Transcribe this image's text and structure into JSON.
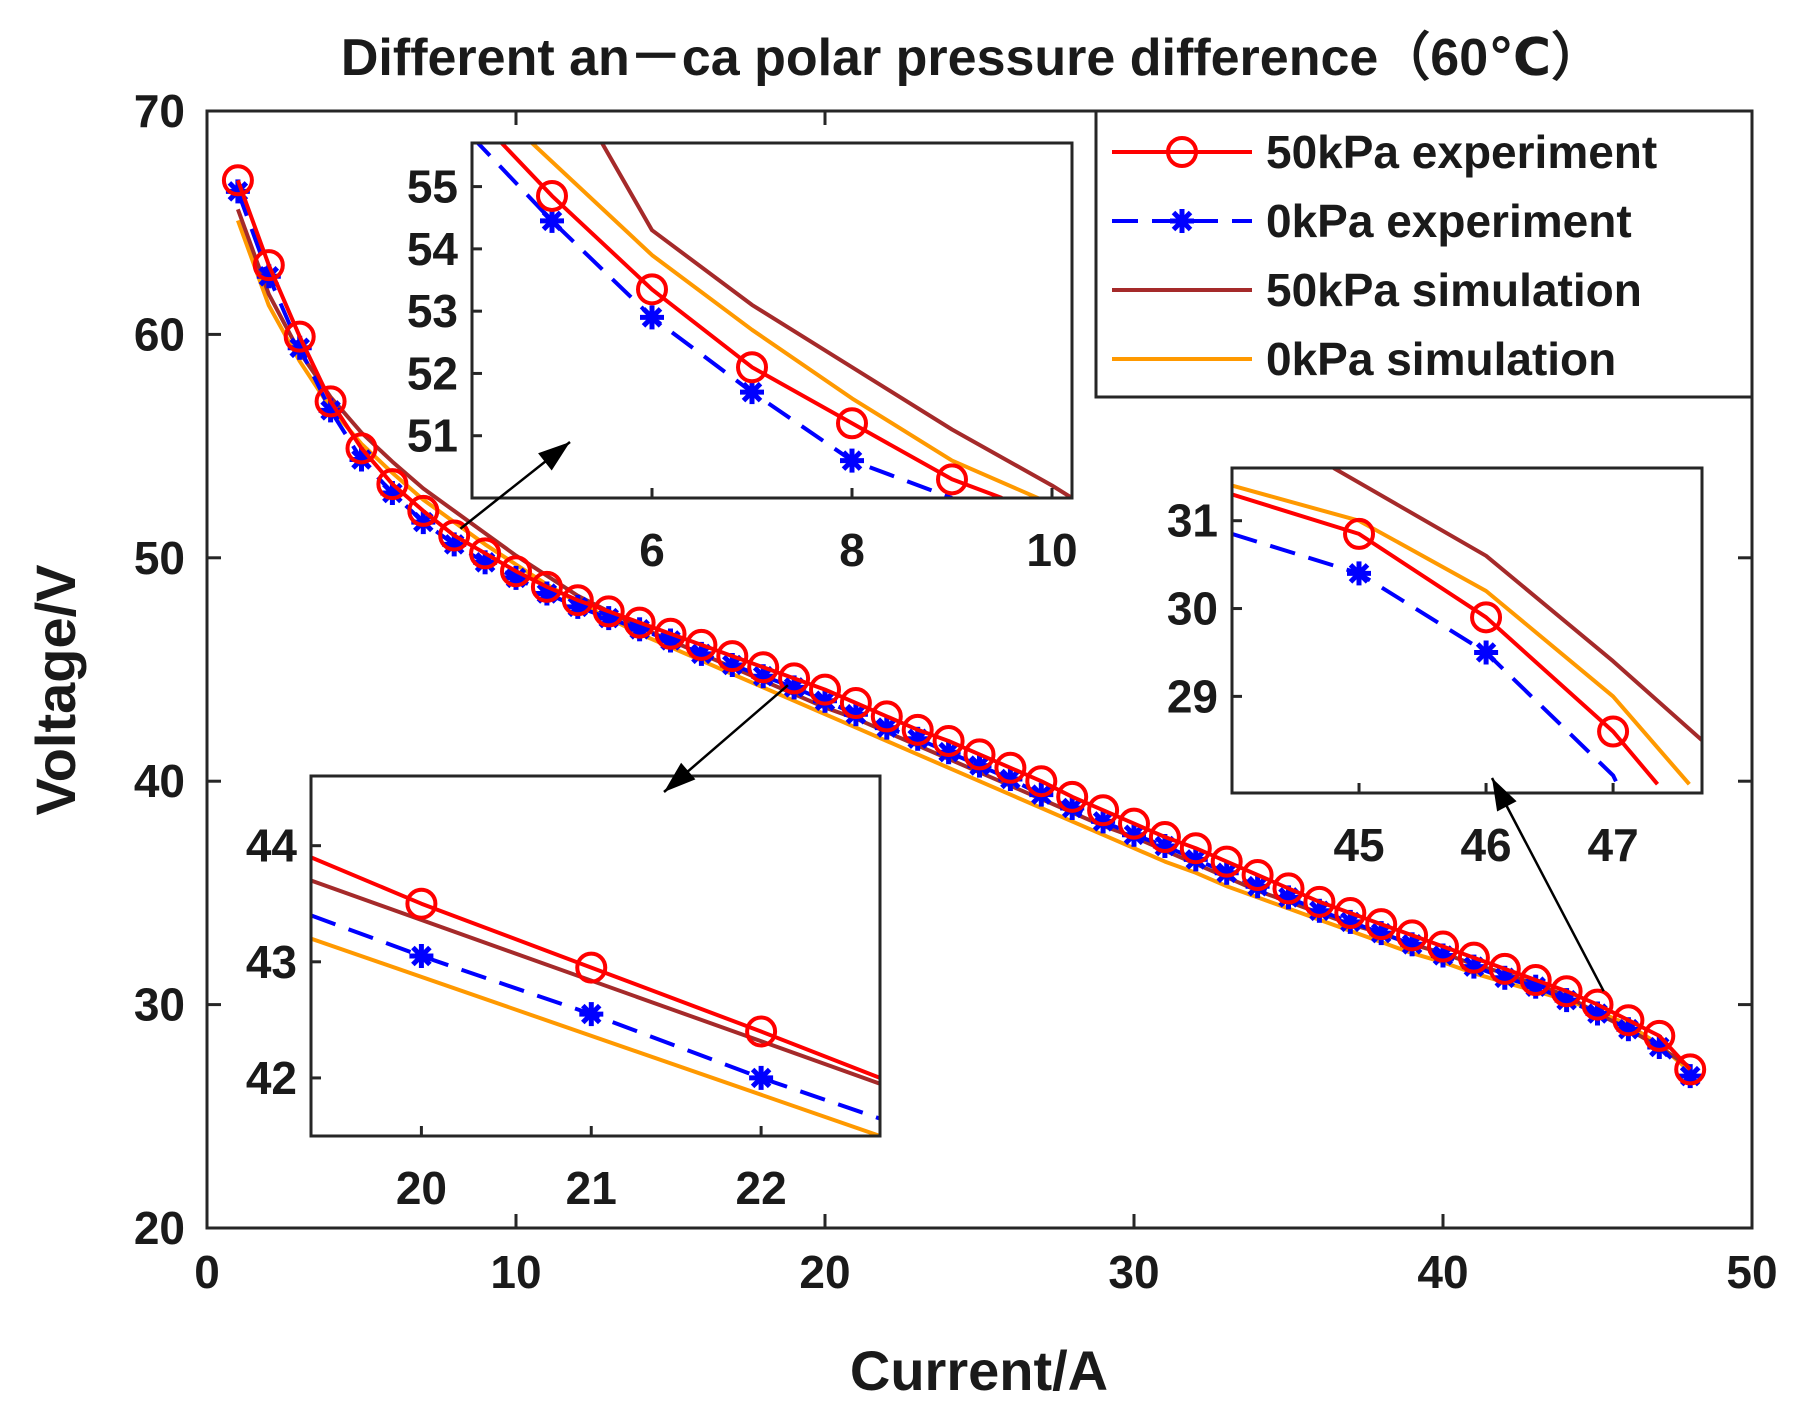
{
  "chart_data": {
    "type": "line",
    "title": "Different an－ca polar pressure difference（60℃）",
    "xlabel": "Current/A",
    "ylabel": "Voltage/V",
    "xlim": [
      0,
      50
    ],
    "ylim": [
      20,
      70
    ],
    "xticks": [
      0,
      10,
      20,
      30,
      40,
      50
    ],
    "yticks": [
      20,
      30,
      40,
      50,
      60,
      70
    ],
    "legend_position": "top-right",
    "colors": {
      "exp50": "#ff0000",
      "exp0": "#0000ff",
      "sim50": "#a52a2a",
      "sim0": "#ff9900"
    },
    "series": [
      {
        "name": "50kPa experiment",
        "key": "exp50",
        "style": "solid-circle",
        "x": [
          1,
          2,
          3,
          4,
          5,
          6,
          7,
          8,
          9,
          10,
          11,
          12,
          13,
          14,
          15,
          16,
          17,
          18,
          19,
          20,
          21,
          22,
          23,
          24,
          25,
          26,
          27,
          28,
          29,
          30,
          31,
          32,
          33,
          34,
          35,
          36,
          37,
          38,
          39,
          40,
          41,
          42,
          43,
          44,
          45,
          46,
          47,
          48
        ],
        "y": [
          66.9,
          63.1,
          59.9,
          57.0,
          54.9,
          53.3,
          52.1,
          51.0,
          50.2,
          49.4,
          48.7,
          48.1,
          47.6,
          47.1,
          46.6,
          46.1,
          45.6,
          45.1,
          44.6,
          44.1,
          43.5,
          42.9,
          42.3,
          41.8,
          41.2,
          40.6,
          40.0,
          39.3,
          38.7,
          38.1,
          37.5,
          37.0,
          36.4,
          35.8,
          35.2,
          34.6,
          34.1,
          33.6,
          33.1,
          32.6,
          32.1,
          31.6,
          31.1,
          30.6,
          30.0,
          29.3,
          28.6,
          27.1
        ]
      },
      {
        "name": "0kPa experiment",
        "key": "exp0",
        "style": "dashed-star",
        "x": [
          1,
          2,
          3,
          4,
          5,
          6,
          7,
          8,
          9,
          10,
          11,
          12,
          13,
          14,
          15,
          16,
          17,
          18,
          19,
          20,
          21,
          22,
          23,
          24,
          25,
          26,
          27,
          28,
          29,
          30,
          31,
          32,
          33,
          34,
          35,
          36,
          37,
          38,
          39,
          40,
          41,
          42,
          43,
          44,
          45,
          46,
          47,
          48
        ],
        "y": [
          66.4,
          62.6,
          59.4,
          56.6,
          54.4,
          52.9,
          51.6,
          50.6,
          49.8,
          49.1,
          48.4,
          47.8,
          47.3,
          46.8,
          46.3,
          45.7,
          45.2,
          44.7,
          44.2,
          43.6,
          43.0,
          42.4,
          41.9,
          41.3,
          40.7,
          40.1,
          39.4,
          38.8,
          38.2,
          37.6,
          37.1,
          36.5,
          35.9,
          35.3,
          34.8,
          34.2,
          33.7,
          33.2,
          32.7,
          32.2,
          31.7,
          31.2,
          30.8,
          30.2,
          29.6,
          28.9,
          28.1,
          26.8
        ]
      },
      {
        "name": "50kPa simulation",
        "key": "sim50",
        "style": "solid",
        "x": [
          1,
          2,
          3,
          4,
          5,
          6,
          7,
          8,
          9,
          10,
          11,
          12,
          13,
          14,
          15,
          16,
          17,
          18,
          19,
          20,
          21,
          22,
          23,
          24,
          25,
          26,
          27,
          28,
          29,
          30,
          31,
          32,
          33,
          34,
          35,
          36,
          37,
          38,
          39,
          40,
          41,
          42,
          43,
          44,
          45,
          46,
          47,
          48
        ],
        "y": [
          65.6,
          61.8,
          59.2,
          57.2,
          55.6,
          54.3,
          53.1,
          52.1,
          51.1,
          50.1,
          49.2,
          48.3,
          47.6,
          46.9,
          46.3,
          45.7,
          45.1,
          44.5,
          43.9,
          43.3,
          42.8,
          42.2,
          41.6,
          41.0,
          40.4,
          39.8,
          39.2,
          38.6,
          38.0,
          37.5,
          36.9,
          36.3,
          35.7,
          35.1,
          34.6,
          34.1,
          33.6,
          33.2,
          32.7,
          32.3,
          31.8,
          31.4,
          30.9,
          30.4,
          29.6,
          28.9,
          28.1,
          27.2
        ]
      },
      {
        "name": "0kPa simulation",
        "key": "sim0",
        "style": "solid",
        "x": [
          1,
          2,
          3,
          4,
          5,
          6,
          7,
          8,
          9,
          10,
          11,
          12,
          13,
          14,
          15,
          16,
          17,
          18,
          19,
          20,
          21,
          22,
          23,
          24,
          25,
          26,
          27,
          28,
          29,
          30,
          31,
          32,
          33,
          34,
          35,
          36,
          37,
          38,
          39,
          40,
          41,
          42,
          43,
          44,
          45,
          46,
          47,
          48
        ],
        "y": [
          65.1,
          61.3,
          58.8,
          56.7,
          55.1,
          53.8,
          52.6,
          51.6,
          50.6,
          49.7,
          48.8,
          48.0,
          47.3,
          46.6,
          46.0,
          45.4,
          44.8,
          44.2,
          43.6,
          43.0,
          42.4,
          41.8,
          41.2,
          40.6,
          40.0,
          39.4,
          38.8,
          38.2,
          37.6,
          37.0,
          36.4,
          35.9,
          35.3,
          34.8,
          34.3,
          33.8,
          33.3,
          32.8,
          32.3,
          31.9,
          31.4,
          31.0,
          30.6,
          30.2,
          29.7,
          29.1,
          28.2,
          27.0
        ]
      }
    ],
    "insets": [
      {
        "name": "inset-top",
        "xlim": [
          4.2,
          10.2
        ],
        "ylim": [
          50.0,
          55.7
        ],
        "xticks": [
          6,
          8,
          10
        ],
        "yticks": [
          51,
          52,
          53,
          54,
          55
        ],
        "series": {
          "exp50": {
            "x": [
              4.2,
              5,
              6,
              7,
              8,
              9,
              9.5
            ],
            "y": [
              56.2,
              54.85,
              53.35,
              52.1,
              51.2,
              50.3,
              50.0
            ]
          },
          "exp0": {
            "x": [
              4.2,
              5,
              6,
              7,
              8,
              9,
              9.0
            ],
            "y": [
              55.8,
              54.45,
              52.9,
              51.7,
              50.6,
              50.0,
              50.0
            ]
          },
          "sim50": {
            "x": [
              5.5,
              6,
              7,
              8,
              9,
              10,
              10.2
            ],
            "y": [
              55.7,
              54.3,
              53.1,
              52.1,
              51.1,
              50.2,
              50.0
            ]
          },
          "sim0": {
            "x": [
              4.8,
              6,
              7,
              8,
              9,
              10,
              10.2
            ],
            "y": [
              55.7,
              53.9,
              52.7,
              51.6,
              50.6,
              49.9,
              49.8
            ]
          }
        },
        "markers": {
          "exp50": [
            [
              5,
              54.85
            ],
            [
              6,
              53.35
            ],
            [
              7,
              52.1
            ],
            [
              8,
              51.2
            ],
            [
              9,
              50.3
            ]
          ],
          "exp0": [
            [
              5,
              54.45
            ],
            [
              6,
              52.9
            ],
            [
              7,
              51.7
            ],
            [
              8,
              50.6
            ]
          ]
        }
      },
      {
        "name": "inset-bottom",
        "xlim": [
          19.35,
          22.7
        ],
        "ylim": [
          41.5,
          44.6
        ],
        "xticks": [
          20,
          21,
          22
        ],
        "yticks": [
          42,
          43,
          44
        ],
        "series": {
          "exp50": {
            "x": [
              19.35,
              20,
              21,
              22,
              22.7
            ],
            "y": [
              43.9,
              43.5,
              42.95,
              42.4,
              42.0
            ]
          },
          "exp0": {
            "x": [
              19.35,
              20,
              21,
              22,
              22.7
            ],
            "y": [
              43.4,
              43.05,
              42.55,
              42.0,
              41.65
            ]
          },
          "sim50": {
            "x": [
              19.35,
              22.7
            ],
            "y": [
              43.7,
              41.95
            ]
          },
          "sim0": {
            "x": [
              19.35,
              22.7
            ],
            "y": [
              43.2,
              41.5
            ]
          }
        },
        "markers": {
          "exp50": [
            [
              20,
              43.5
            ],
            [
              21,
              42.95
            ],
            [
              22,
              42.4
            ]
          ],
          "exp0": [
            [
              20,
              43.05
            ],
            [
              21,
              42.55
            ],
            [
              22,
              42.0
            ]
          ]
        }
      },
      {
        "name": "inset-right",
        "xlim": [
          44.0,
          47.7
        ],
        "ylim": [
          27.9,
          31.6
        ],
        "xticks": [
          45,
          46,
          47
        ],
        "yticks": [
          29,
          30,
          31
        ],
        "series": {
          "exp50": {
            "x": [
              44.0,
              45,
              46,
              47,
              47.35
            ],
            "y": [
              31.3,
              30.85,
              29.9,
              28.6,
              28.0
            ]
          },
          "exp0": {
            "x": [
              44.0,
              45,
              46,
              47,
              47.05
            ],
            "y": [
              30.85,
              30.4,
              29.5,
              28.1,
              27.95
            ]
          },
          "sim50": {
            "x": [
              44.8,
              46,
              47,
              47.7
            ],
            "y": [
              31.6,
              30.6,
              29.4,
              28.5
            ]
          },
          "sim0": {
            "x": [
              44.0,
              45,
              46,
              47,
              47.6
            ],
            "y": [
              31.4,
              31.0,
              30.2,
              29.0,
              28.0
            ]
          }
        },
        "markers": {
          "exp50": [
            [
              45,
              30.85
            ],
            [
              46,
              29.9
            ],
            [
              47,
              28.6
            ]
          ],
          "exp0": [
            [
              45,
              30.4
            ],
            [
              46,
              29.5
            ]
          ]
        }
      }
    ]
  }
}
